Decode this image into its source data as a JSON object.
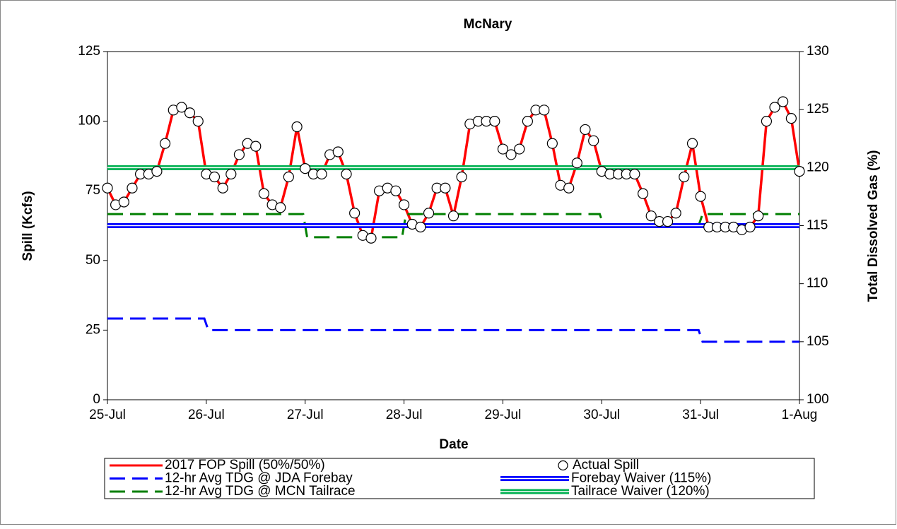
{
  "chart_data": {
    "type": "line",
    "title": "McNary",
    "x_label": "Date",
    "y_label": "Spill (Kcfs)",
    "y2_label": "Total Dissolved Gas (%)",
    "xlim": [
      0,
      7
    ],
    "xticks": [
      {
        "value": 0,
        "label": "25-Jul"
      },
      {
        "value": 1,
        "label": "26-Jul"
      },
      {
        "value": 2,
        "label": "27-Jul"
      },
      {
        "value": 3,
        "label": "28-Jul"
      },
      {
        "value": 4,
        "label": "29-Jul"
      },
      {
        "value": 5,
        "label": "30-Jul"
      },
      {
        "value": 6,
        "label": "31-Jul"
      },
      {
        "value": 7,
        "label": "1-Aug"
      }
    ],
    "ylim": [
      0,
      125
    ],
    "yticks": [
      0,
      25,
      50,
      75,
      100,
      125
    ],
    "y2lim": [
      100,
      130
    ],
    "y2ticks": [
      100,
      105,
      110,
      115,
      120,
      125,
      130
    ],
    "x": [
      0,
      0.083,
      0.167,
      0.25,
      0.333,
      0.417,
      0.5,
      0.583,
      0.667,
      0.75,
      0.833,
      0.917,
      1,
      1.083,
      1.167,
      1.25,
      1.333,
      1.417,
      1.5,
      1.583,
      1.667,
      1.75,
      1.833,
      1.917,
      2,
      2.083,
      2.167,
      2.25,
      2.333,
      2.417,
      2.5,
      2.583,
      2.667,
      2.75,
      2.833,
      2.917,
      3,
      3.083,
      3.167,
      3.25,
      3.333,
      3.417,
      3.5,
      3.583,
      3.667,
      3.75,
      3.833,
      3.917,
      4,
      4.083,
      4.167,
      4.25,
      4.333,
      4.417,
      4.5,
      4.583,
      4.667,
      4.75,
      4.833,
      4.917,
      5,
      5.083,
      5.167,
      5.25,
      5.333,
      5.417,
      5.5,
      5.583,
      5.667,
      5.75,
      5.833,
      5.917,
      6,
      6.083,
      6.167,
      6.25,
      6.333,
      6.417,
      6.5,
      6.583,
      6.667,
      6.75,
      6.833,
      6.917,
      7
    ],
    "series": [
      {
        "name": "2017 FOP Spill (50%/50%)",
        "color": "#ff0000",
        "style": "line",
        "values": [
          76,
          70,
          71,
          76,
          81,
          81,
          82,
          92,
          104,
          105,
          103,
          100,
          81,
          80,
          76,
          81,
          88,
          92,
          91,
          74,
          70,
          69,
          80,
          98,
          83,
          81,
          81,
          88,
          89,
          81,
          67,
          59,
          58,
          75,
          76,
          75,
          70,
          63,
          62,
          67,
          76,
          76,
          66,
          80,
          99,
          100,
          100,
          100,
          90,
          88,
          90,
          100,
          104,
          104,
          92,
          77,
          76,
          85,
          97,
          93,
          82,
          81,
          81,
          81,
          81,
          74,
          66,
          64,
          64,
          67,
          80,
          92,
          73,
          62,
          62,
          62,
          62,
          61,
          62,
          66,
          100,
          105,
          107,
          101,
          82
        ]
      },
      {
        "name": "Actual Spill",
        "color": "#000000",
        "style": "markers",
        "values": [
          76,
          70,
          71,
          76,
          81,
          81,
          82,
          92,
          104,
          105,
          103,
          100,
          81,
          80,
          76,
          81,
          88,
          92,
          91,
          74,
          70,
          69,
          80,
          98,
          83,
          81,
          81,
          88,
          89,
          81,
          67,
          59,
          58,
          75,
          76,
          75,
          70,
          63,
          62,
          67,
          76,
          76,
          66,
          80,
          99,
          100,
          100,
          100,
          90,
          88,
          90,
          100,
          104,
          104,
          92,
          77,
          76,
          85,
          97,
          93,
          82,
          81,
          81,
          81,
          81,
          74,
          66,
          64,
          64,
          67,
          80,
          92,
          73,
          62,
          62,
          62,
          62,
          61,
          62,
          66,
          100,
          105,
          107,
          101,
          82
        ]
      },
      {
        "name": "12-hr Avg TDG @ JDA Forebay",
        "color": "#0000ff",
        "style": "dashed",
        "axis": "y2",
        "x": [
          0,
          0.98,
          1.02,
          5.98,
          6.02,
          7
        ],
        "values": [
          107,
          107,
          106,
          106,
          105,
          105
        ]
      },
      {
        "name": "Forebay Waiver (115%)",
        "color": "#0000ff",
        "style": "double",
        "axis": "y2",
        "x": [
          0,
          7
        ],
        "values": [
          115,
          115
        ]
      },
      {
        "name": "12-hr Avg TDG @ MCN Tailrace",
        "color": "#007f00",
        "style": "dashed",
        "axis": "y2",
        "x": [
          0,
          1.98,
          2.02,
          2.98,
          3.02,
          4.98,
          5.02,
          5.98,
          6.02,
          7
        ],
        "values": [
          116,
          116,
          114,
          114,
          116,
          116,
          115,
          115,
          116,
          116
        ]
      },
      {
        "name": "Tailrace Waiver (120%)",
        "color": "#00b050",
        "style": "double",
        "axis": "y2",
        "x": [
          0,
          7
        ],
        "values": [
          120,
          120
        ]
      }
    ]
  }
}
